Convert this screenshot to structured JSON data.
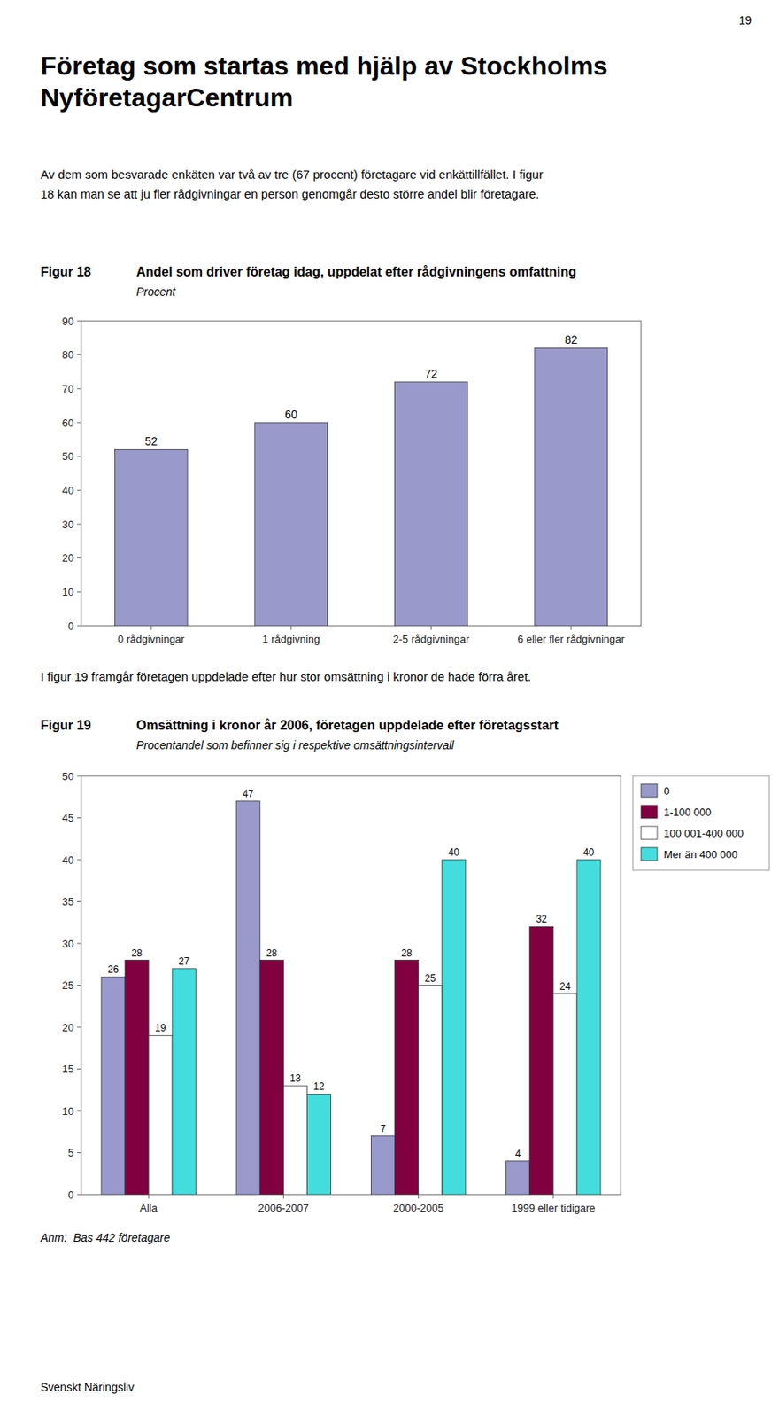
{
  "page_number": "19",
  "title": [
    "Företag som startas med hjälp av Stockholms",
    "NyföretagarCentrum"
  ],
  "intro_text": "Av dem som besvarade enkäten var två av tre (67 procent) företagare vid enkättillfället. I figur\n18 kan man se att ju fler rådgivningar en person genomgår desto större andel blir företagare.",
  "between_text": "I figur 19 framgår företagen uppdelade efter hur stor omsättning i kronor de hade förra året.",
  "footer": "Svenskt Näringsliv",
  "chart_data": [
    {
      "type": "bar",
      "figure_label": "Figur 18",
      "title": "Andel som driver företag idag, uppdelat efter rådgivningens omfattning",
      "subtitle": "Procent",
      "categories": [
        "0 rådgivningar",
        "1 rådgivning",
        "2-5 rådgivningar",
        "6 eller fler rådgivningar"
      ],
      "values": [
        52,
        60,
        72,
        82
      ],
      "color": "#9999cc",
      "ylim": [
        0,
        90
      ],
      "yticks": [
        0,
        10,
        20,
        30,
        40,
        50,
        60,
        70,
        80,
        90
      ],
      "data_labels": true,
      "grid": false
    },
    {
      "type": "bar",
      "figure_label": "Figur 19",
      "title": "Omsättning i kronor år 2006, företagen uppdelade efter företagsstart",
      "subtitle": "Procentandel som befinner sig i respektive omsättningsintervall",
      "categories": [
        "Alla",
        "2006-2007",
        "2000-2005",
        "1999 eller tidigare"
      ],
      "series": [
        {
          "name": "0",
          "color": "#9999cc",
          "values": [
            26,
            47,
            7,
            4
          ]
        },
        {
          "name": "1-100 000",
          "color": "#800040",
          "values": [
            28,
            28,
            28,
            32
          ]
        },
        {
          "name": "100 001-400 000",
          "color": "#ffffff",
          "values": [
            19,
            13,
            25,
            24
          ]
        },
        {
          "name": "Mer än 400 000",
          "color": "#44dddd",
          "values": [
            27,
            12,
            40,
            40
          ]
        }
      ],
      "ylim": [
        0,
        50
      ],
      "yticks": [
        0,
        5,
        10,
        15,
        20,
        25,
        30,
        35,
        40,
        45,
        50
      ],
      "data_labels": true,
      "grid": false,
      "legend": "right",
      "note": "Anm:  Bas 442 företagare"
    }
  ]
}
